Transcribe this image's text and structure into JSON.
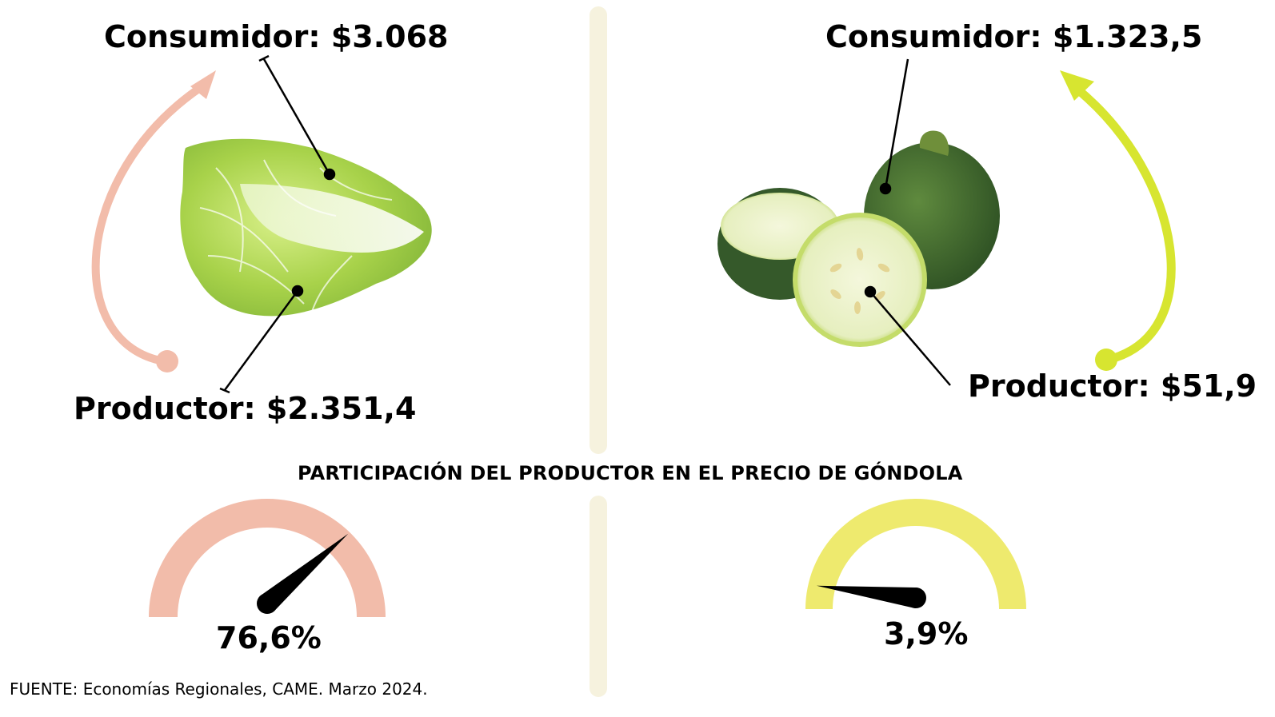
{
  "left": {
    "consumer_label": "Consumidor: $3.068",
    "producer_label": "Productor: $2.351,4",
    "share_label": "76,6%",
    "share": 76.6,
    "color": "#f2bcaa",
    "product_icon": "cabbage-icon"
  },
  "right": {
    "consumer_label": "Consumidor: $1.323,5",
    "producer_label": "Productor: $51,9",
    "share_label": "3,9%",
    "share": 3.9,
    "arrow_color": "#d7e530",
    "gauge_color": "#eeea6e",
    "product_icon": "zucchini-icon"
  },
  "subtitle": "PARTICIPACIÓN DEL PRODUCTOR EN EL PRECIO DE GÓNDOLA",
  "source": "FUENTE: Economías Regionales, CAME. Marzo 2024.",
  "divider_color": "#f6f2de"
}
